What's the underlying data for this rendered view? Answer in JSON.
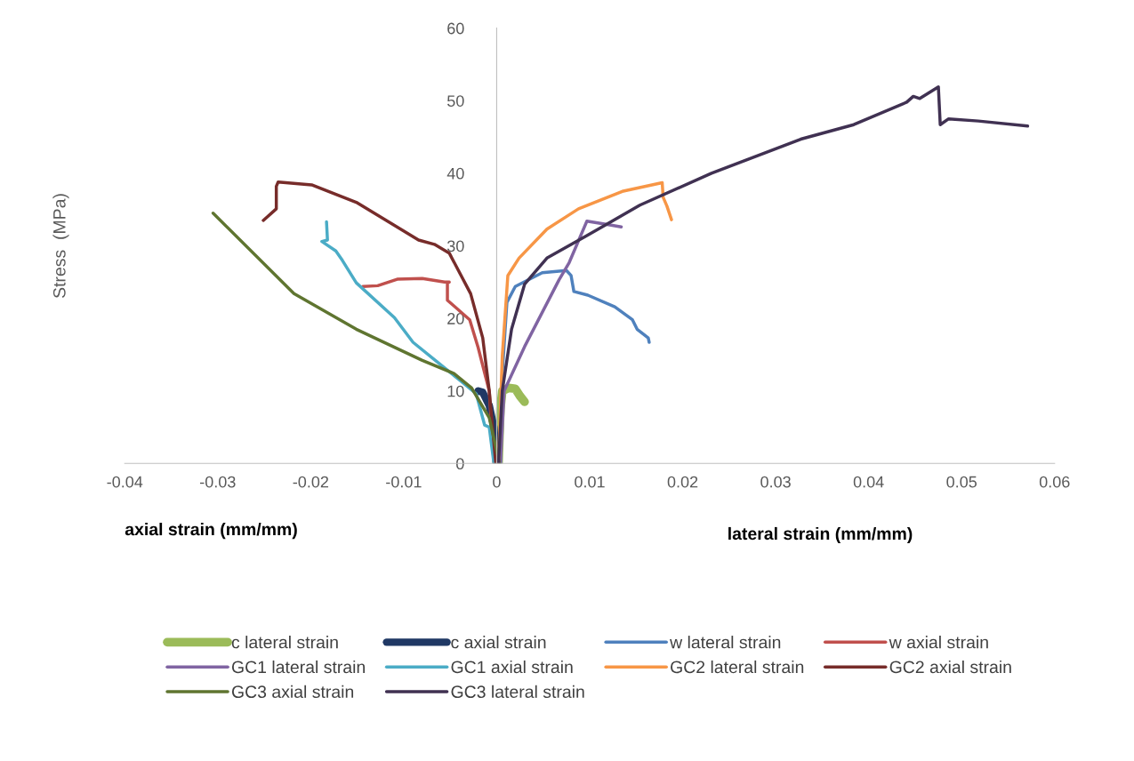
{
  "chart_data": {
    "type": "line",
    "ylabel": "Stress  (MPa)",
    "annotations": [
      "axial strain (mm/mm)",
      "lateral strain (mm/mm)"
    ],
    "xlim": [
      -0.04,
      0.06
    ],
    "xticks": [
      -0.04,
      -0.03,
      -0.02,
      -0.01,
      0,
      0.01,
      0.02,
      0.03,
      0.04,
      0.05,
      0.06
    ],
    "ylim": [
      0,
      60
    ],
    "yticks": [
      0,
      10,
      20,
      30,
      40,
      50,
      60
    ],
    "grid": false,
    "legend": "bottom",
    "marker": "none",
    "line_style": "solid",
    "series": [
      {
        "name": "c lateral strain",
        "color": "#9bbb59",
        "x": [
          0.0002,
          0.0004,
          0.0006,
          0.0013,
          0.002,
          0.0025,
          0.003
        ],
        "values": [
          0,
          7.5,
          10,
          10.4,
          10.3,
          9.3,
          8.5
        ]
      },
      {
        "name": "c axial strain",
        "color": "#1f3864",
        "x": [
          0,
          -0.0003,
          -0.0008,
          -0.0015,
          -0.002
        ],
        "values": [
          0,
          5,
          8,
          9.8,
          10
        ]
      },
      {
        "name": "w lateral strain",
        "color": "#4f81bd",
        "x": [
          0.0004,
          0.0006,
          0.0011,
          0.002,
          0.0049,
          0.0075,
          0.008,
          0.0083,
          0.0098,
          0.0127,
          0.0146,
          0.0151,
          0.0163,
          0.0164
        ],
        "values": [
          0,
          12.4,
          22.2,
          24.4,
          26.3,
          26.6,
          25.9,
          23.7,
          23.2,
          21.6,
          19.8,
          18.5,
          17.3,
          16.7
        ]
      },
      {
        "name": "w axial strain",
        "color": "#c0504d",
        "x": [
          -0.0003,
          -0.0008,
          -0.002,
          -0.0029,
          -0.0053,
          -0.0053,
          -0.0051,
          -0.0056,
          -0.008,
          -0.0107,
          -0.0128,
          -0.0144
        ],
        "values": [
          0,
          10,
          16,
          19.8,
          22.5,
          24.9,
          25,
          25,
          25.5,
          25.4,
          24.5,
          24.4
        ]
      },
      {
        "name": "GC1 lateral strain",
        "color": "#8064a2",
        "x": [
          0.0004,
          0.0008,
          0.003,
          0.0067,
          0.0078,
          0.0097,
          0.0116,
          0.0134
        ],
        "values": [
          0,
          10,
          16.1,
          25.3,
          27.7,
          33.4,
          33,
          32.6
        ]
      },
      {
        "name": "GC1 axial strain",
        "color": "#4bacc6",
        "x": [
          -0.0003,
          -0.0008,
          -0.0013,
          -0.0022,
          -0.0037,
          -0.0066,
          -0.009,
          -0.011,
          -0.0151,
          -0.0166,
          -0.0173,
          -0.0188,
          -0.0182,
          -0.0183
        ],
        "values": [
          0,
          5,
          5.3,
          9.6,
          11.2,
          14.2,
          16.7,
          20.1,
          24.9,
          28,
          29.3,
          30.6,
          30.8,
          33.3
        ]
      },
      {
        "name": "GC2 lateral strain",
        "color": "#f79646",
        "x": [
          0.0002,
          0.0006,
          0.0012,
          0.0024,
          0.0054,
          0.0088,
          0.0135,
          0.0178,
          0.0179,
          0.0183,
          0.0188
        ],
        "values": [
          0,
          14.8,
          25.9,
          28.3,
          32.3,
          35.1,
          37.5,
          38.7,
          36.7,
          35.5,
          33.6
        ]
      },
      {
        "name": "GC2 axial strain",
        "color": "#772c2a",
        "x": [
          -0.0001,
          -0.0008,
          -0.0015,
          -0.0028,
          -0.0051,
          -0.0067,
          -0.0084,
          -0.0151,
          -0.0199,
          -0.0235,
          -0.0237,
          -0.0237,
          -0.0251
        ],
        "values": [
          0,
          10,
          17.3,
          23.4,
          29,
          30.2,
          30.8,
          36,
          38.4,
          38.8,
          38.2,
          35.1,
          33.5
        ]
      },
      {
        "name": "GC3 axial strain",
        "color": "#5f7530",
        "x": [
          0.0003,
          -0.0008,
          -0.0027,
          -0.0046,
          -0.008,
          -0.0151,
          -0.0218,
          -0.0305
        ],
        "values": [
          0,
          6.3,
          10.4,
          12.4,
          14.2,
          18.5,
          23.4,
          34.5
        ]
      },
      {
        "name": "GC3 lateral strain",
        "color": "#403152",
        "x": [
          0.0002,
          0.0006,
          0.0016,
          0.003,
          0.0054,
          0.0097,
          0.0154,
          0.0231,
          0.0327,
          0.0384,
          0.0441,
          0.0448,
          0.0455,
          0.0475,
          0.0477,
          0.0486,
          0.0518,
          0.0571
        ],
        "values": [
          0,
          10,
          18.5,
          24.7,
          28.3,
          31.4,
          35.6,
          40,
          44.7,
          46.7,
          49.8,
          50.6,
          50.3,
          51.9,
          46.7,
          47.5,
          47.2,
          46.5
        ]
      }
    ]
  }
}
